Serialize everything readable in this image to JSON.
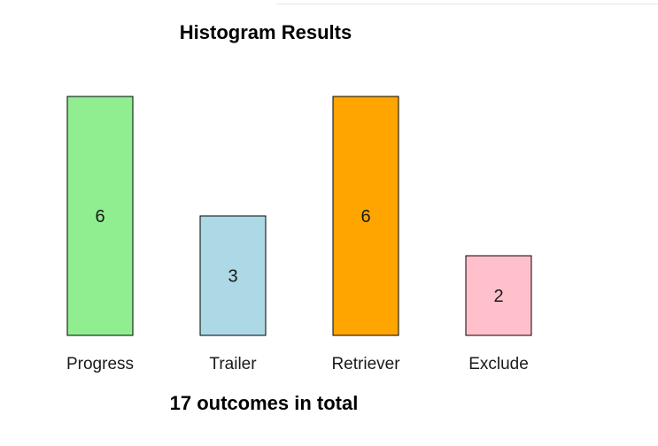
{
  "chart_data": {
    "type": "bar",
    "title": "Histogram Results",
    "xlabel": "17 outcomes in total",
    "ylabel": "",
    "categories": [
      "Progress",
      "Trailer",
      "Retriever",
      "Exclude"
    ],
    "values": [
      6,
      3,
      6,
      2
    ],
    "data_labels": [
      "6",
      "3",
      "6",
      "2"
    ],
    "colors": [
      "#90ee90",
      "#add8e6",
      "#ffa500",
      "#ffc0cb"
    ],
    "ylim": [
      0,
      6
    ],
    "grid": false,
    "legend": "none"
  }
}
